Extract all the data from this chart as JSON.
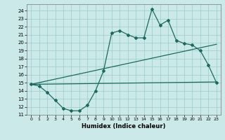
{
  "xlabel": "Humidex (Indice chaleur)",
  "background_color": "#cce9e9",
  "grid_color": "#99cccc",
  "line_color": "#1a6b5e",
  "xlim": [
    -0.5,
    23.5
  ],
  "ylim": [
    11,
    24.8
  ],
  "yticks": [
    11,
    12,
    13,
    14,
    15,
    16,
    17,
    18,
    19,
    20,
    21,
    22,
    23,
    24
  ],
  "xticks": [
    0,
    1,
    2,
    3,
    4,
    5,
    6,
    7,
    8,
    9,
    10,
    11,
    12,
    13,
    14,
    15,
    16,
    17,
    18,
    19,
    20,
    21,
    22,
    23
  ],
  "line1_x": [
    0,
    1,
    2,
    3,
    4,
    5,
    6,
    7,
    8,
    9,
    10,
    11,
    12,
    13,
    14,
    15,
    16,
    17,
    18,
    19,
    20,
    21,
    22,
    23
  ],
  "line1_y": [
    14.8,
    14.6,
    13.8,
    12.8,
    11.8,
    11.5,
    11.5,
    12.2,
    14.0,
    16.5,
    21.2,
    21.5,
    21.0,
    20.6,
    20.6,
    24.2,
    22.2,
    22.8,
    20.3,
    19.9,
    19.7,
    19.0,
    17.2,
    15.0
  ],
  "line2_x": [
    0,
    23
  ],
  "line2_y": [
    14.8,
    19.8
  ],
  "line3_x": [
    0,
    23
  ],
  "line3_y": [
    14.8,
    15.1
  ]
}
